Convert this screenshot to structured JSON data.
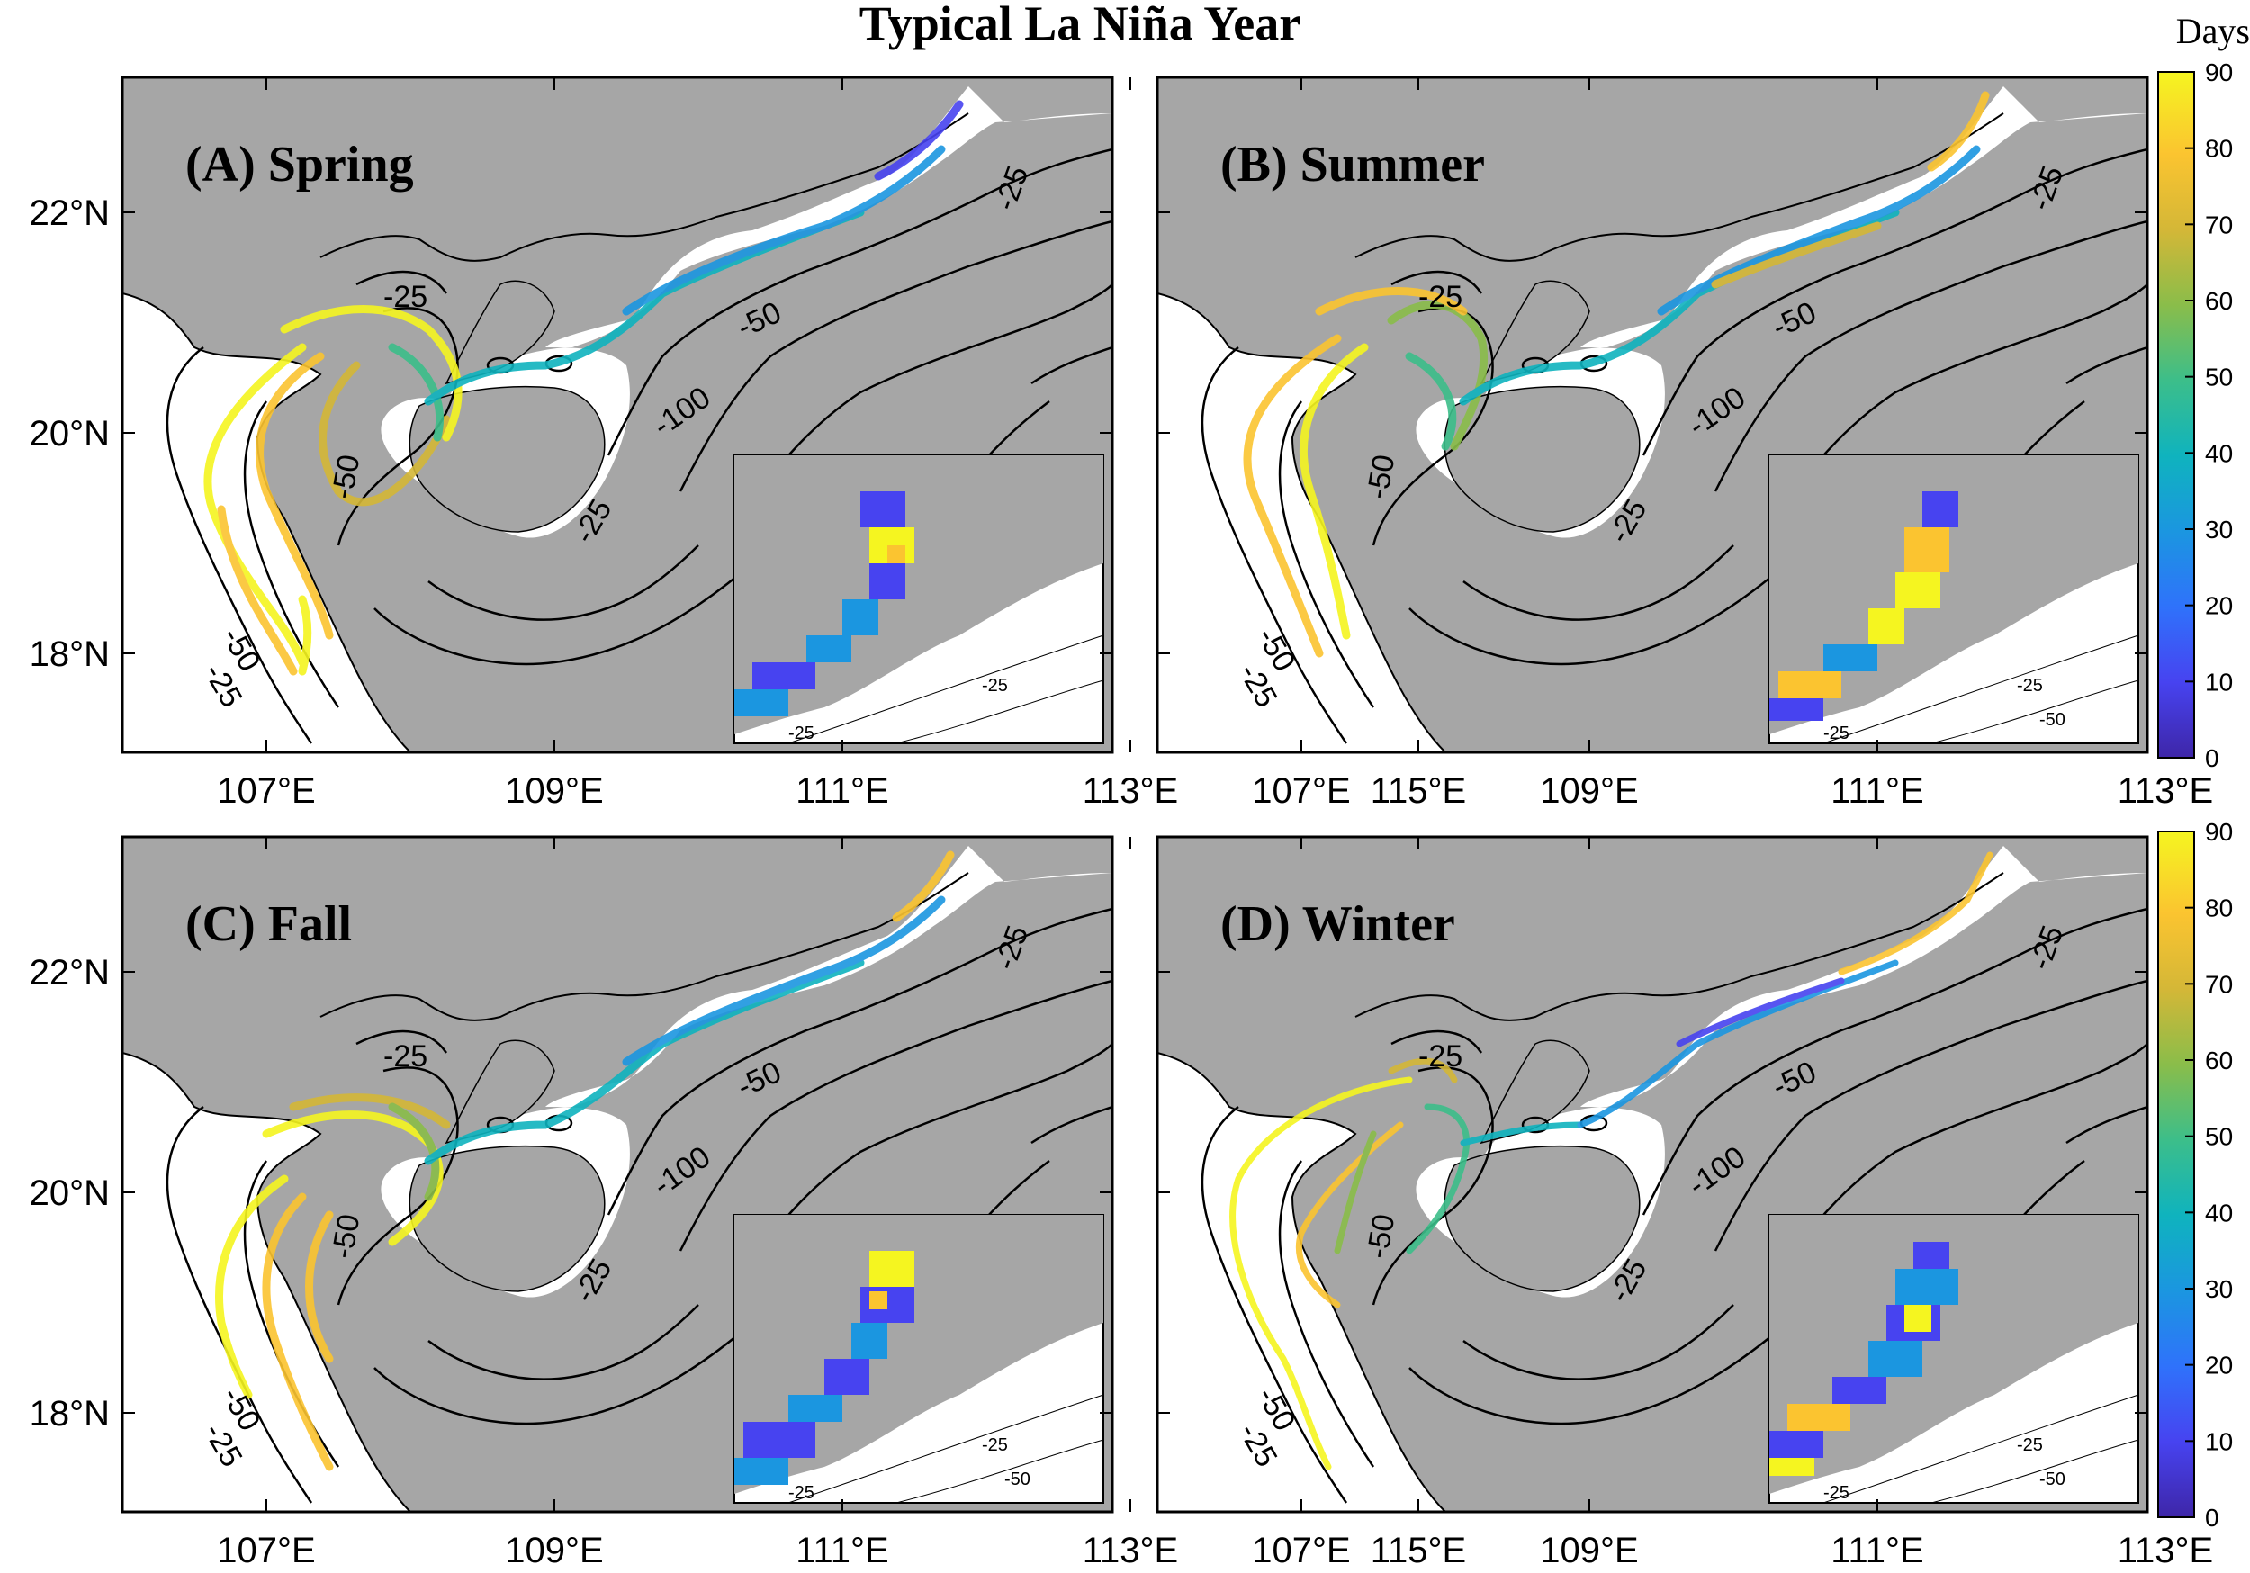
{
  "figure": {
    "title": "Typical La Niña Year",
    "colors": {
      "land": "#a6a6a6",
      "sea": "#ffffff",
      "contour": "#000000"
    }
  },
  "colorbar": {
    "title": "Days",
    "ticks": [
      "0",
      "10",
      "20",
      "30",
      "40",
      "50",
      "60",
      "70",
      "80",
      "90"
    ],
    "colormap": "parula",
    "colors": [
      "#3e26a8",
      "#4743f0",
      "#2f72fb",
      "#1b96e0",
      "#0fb3be",
      "#3cbe8a",
      "#8abd4a",
      "#d4b737",
      "#fbc430",
      "#f5f520"
    ],
    "range": [
      0,
      90
    ]
  },
  "axes": {
    "lon_labels": [
      "107°E",
      "109°E",
      "111°E",
      "113°E",
      "115°E"
    ],
    "lat_labels": [
      "22°N",
      "20°N",
      "18°N"
    ]
  },
  "panels": [
    {
      "label": "(A) Spring",
      "isobaths": [
        "-25",
        "-50",
        "-50",
        "-25",
        "-25",
        "-50",
        "-100",
        "-25"
      ],
      "inset_isobaths": [
        "-25",
        "-25"
      ]
    },
    {
      "label": "(B) Summer",
      "isobaths": [
        "-25",
        "-50",
        "-50",
        "-25",
        "-25",
        "-50",
        "-100",
        "-25"
      ],
      "inset_isobaths": [
        "-25",
        "-25",
        "-50"
      ]
    },
    {
      "label": "(C) Fall",
      "isobaths": [
        "-25",
        "-50",
        "-50",
        "-25",
        "-25",
        "-50",
        "-100",
        "-25"
      ],
      "inset_isobaths": [
        "-25",
        "-25",
        "-50"
      ]
    },
    {
      "label": "(D) Winter",
      "isobaths": [
        "-25",
        "-50",
        "-50",
        "-25",
        "-25",
        "-50",
        "-100",
        "-25"
      ],
      "inset_isobaths": [
        "-25",
        "-25",
        "-50"
      ]
    }
  ]
}
